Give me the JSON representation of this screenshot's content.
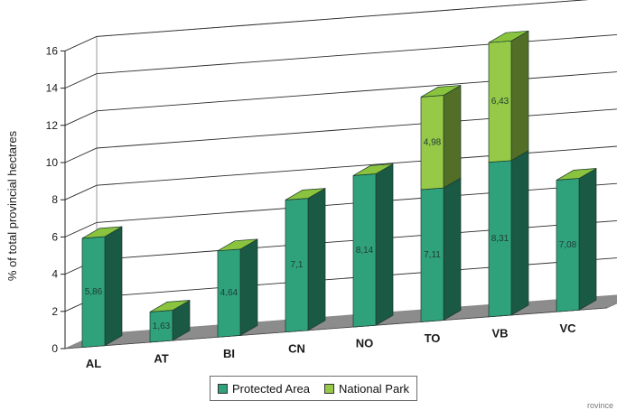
{
  "chart_data": {
    "type": "bar",
    "stacked": true,
    "three_d": true,
    "ylabel": "% of total provincial hectares",
    "ylim": [
      0,
      16
    ],
    "yticks": [
      0,
      2,
      4,
      6,
      8,
      10,
      12,
      14,
      16
    ],
    "grid": true,
    "legend_position": "bottom",
    "categories": [
      "AL",
      "AT",
      "BI",
      "CN",
      "NO",
      "TO",
      "VB",
      "VC"
    ],
    "series": [
      {
        "name": "Protected Area",
        "color": "#2fa27c",
        "values": [
          5.86,
          1.63,
          4.64,
          7.1,
          8.14,
          7.11,
          8.31,
          7.08
        ],
        "labels": [
          "5,86",
          "1,63",
          "4,64",
          "7,1",
          "8,14",
          "7,11",
          "8,31",
          "7,08"
        ]
      },
      {
        "name": "National Park",
        "color": "#96c947",
        "values": [
          0,
          0,
          0,
          0,
          0,
          4.98,
          6.43,
          0
        ],
        "labels": [
          "",
          "",
          "",
          "",
          "",
          "4,98",
          "6,43",
          ""
        ]
      }
    ]
  },
  "footer_text": "rovince"
}
